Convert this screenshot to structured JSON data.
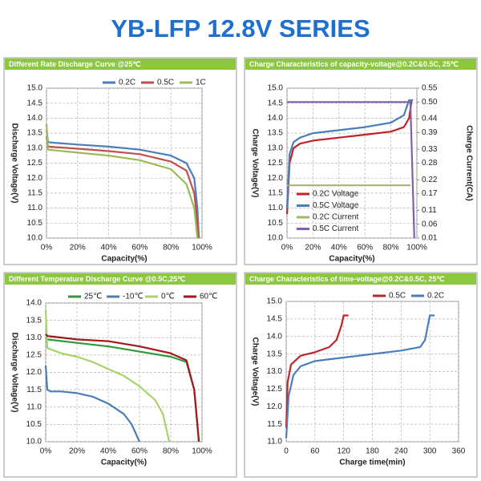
{
  "title": "YB-LFP 12.8V SERIES",
  "chart_data": [
    {
      "type": "line",
      "title": "Different Rate Discharge Curve @25℃",
      "x_label": "Capacity(%)",
      "y_label": "Discharge Voltage(V)",
      "xlim": [
        0,
        100
      ],
      "xticks": [
        {
          "value": 0,
          "label": "0%"
        },
        {
          "value": 20,
          "label": "20%"
        },
        {
          "value": 40,
          "label": "40%"
        },
        {
          "value": 60,
          "label": "60%"
        },
        {
          "value": 80,
          "label": "80%"
        },
        {
          "value": 100,
          "label": "100%"
        }
      ],
      "ylim": [
        10,
        15
      ],
      "yticks": [
        {
          "value": 10,
          "label": "10.0"
        },
        10.5,
        {
          "value": 11,
          "label": "11.0"
        },
        11.5,
        {
          "value": 12,
          "label": "12.0"
        },
        12.5,
        {
          "value": 13,
          "label": "13.0"
        },
        13.5,
        {
          "value": 14,
          "label": "14.0"
        },
        14.5,
        {
          "value": 15,
          "label": "15.0"
        }
      ],
      "grid": true,
      "legend": "top",
      "series": [
        {
          "name": "0.2C",
          "color": "#4a7ebb",
          "x": [
            0,
            1,
            5,
            20,
            40,
            60,
            80,
            90,
            95,
            97,
            98
          ],
          "values": [
            13.6,
            13.2,
            13.18,
            13.12,
            13.05,
            12.95,
            12.75,
            12.5,
            12.0,
            11.0,
            10.0
          ]
        },
        {
          "name": "0.5C",
          "color": "#c0504d",
          "x": [
            0,
            1,
            20,
            40,
            60,
            80,
            90,
            95,
            97,
            98
          ],
          "values": [
            13.4,
            13.05,
            12.98,
            12.9,
            12.8,
            12.55,
            12.25,
            11.5,
            10.5,
            10.0
          ]
        },
        {
          "name": "1C",
          "color": "#9bbb59",
          "x": [
            0,
            1,
            20,
            40,
            60,
            80,
            90,
            95,
            97
          ],
          "values": [
            13.8,
            12.95,
            12.85,
            12.75,
            12.6,
            12.3,
            11.8,
            11.0,
            10.0
          ]
        }
      ]
    },
    {
      "type": "line",
      "title": "Charge  Characteristics of capacity-voltage@0.2C&0.5C, 25℃",
      "x_label": "Capacity(%)",
      "y_label": "Charge Voltage(V)",
      "y2_label": "Charge Current(CA)",
      "xlim": [
        0,
        100
      ],
      "xticks": [
        {
          "value": 0,
          "label": "0%"
        },
        {
          "value": 20,
          "label": "20%"
        },
        {
          "value": 40,
          "label": "40%"
        },
        {
          "value": 60,
          "label": "60%"
        },
        {
          "value": 80,
          "label": "80%"
        },
        {
          "value": 100,
          "label": "100%"
        }
      ],
      "ylim": [
        10,
        15
      ],
      "yticks": [
        {
          "value": 10,
          "label": "10.0"
        },
        10.5,
        {
          "value": 11,
          "label": "11.0"
        },
        11.5,
        {
          "value": 12,
          "label": "12.0"
        },
        12.5,
        {
          "value": 13,
          "label": "13.0"
        },
        13.5,
        {
          "value": 14,
          "label": "14.0"
        },
        14.5,
        {
          "value": 15,
          "label": "15.0"
        }
      ],
      "y2lim": [
        0.01,
        0.55
      ],
      "y2ticks": [
        0.01,
        0.06,
        0.11,
        0.17,
        0.22,
        0.28,
        0.33,
        0.39,
        0.44,
        {
          "value": 0.5,
          "label": "0.50"
        },
        0.55
      ],
      "grid": true,
      "legend": "lower left",
      "series": [
        {
          "name": "0.2C Voltage",
          "color": "#c0232a",
          "x": [
            0,
            2,
            5,
            10,
            20,
            40,
            60,
            80,
            90,
            94,
            96,
            97
          ],
          "values": [
            10.8,
            12.5,
            13.0,
            13.15,
            13.25,
            13.35,
            13.45,
            13.55,
            13.7,
            14.0,
            14.6,
            14.6
          ]
        },
        {
          "name": "0.5C Voltage",
          "color": "#4a7ebb",
          "x": [
            0,
            2,
            5,
            10,
            20,
            40,
            60,
            80,
            90,
            94,
            97
          ],
          "values": [
            11.0,
            12.8,
            13.2,
            13.35,
            13.5,
            13.6,
            13.7,
            13.85,
            14.1,
            14.6,
            14.6
          ]
        },
        {
          "name": "0.2C Current",
          "color": "#9bbb59",
          "axis": "y2",
          "x": [
            0,
            95
          ],
          "values": [
            0.2,
            0.2
          ]
        },
        {
          "name": "0.5C Current",
          "color": "#7f5fa8",
          "axis": "y2",
          "x": [
            0,
            95,
            98
          ],
          "values": [
            0.5,
            0.5,
            0.01
          ]
        }
      ]
    },
    {
      "type": "line",
      "title": "Different Temperature Discharge Curve @0.5C,25℃",
      "x_label": "Capacity(%)",
      "y_label": "Discharge Voltage(V)",
      "xlim": [
        0,
        100
      ],
      "xticks": [
        {
          "value": 0,
          "label": "0%"
        },
        {
          "value": 20,
          "label": "20%"
        },
        {
          "value": 40,
          "label": "40%"
        },
        {
          "value": 60,
          "label": "60%"
        },
        {
          "value": 80,
          "label": "80%"
        },
        {
          "value": 100,
          "label": "100%"
        }
      ],
      "ylim": [
        10,
        14
      ],
      "yticks": [
        {
          "value": 10,
          "label": "10.0"
        },
        10.5,
        {
          "value": 11,
          "label": "11.0"
        },
        11.5,
        {
          "value": 12,
          "label": "12.0"
        },
        12.5,
        {
          "value": 13,
          "label": "13.0"
        },
        13.5,
        {
          "value": 14,
          "label": "14.0"
        }
      ],
      "grid": true,
      "legend": "top",
      "series": [
        {
          "name": "25℃",
          "color": "#2e9a3a",
          "x": [
            0,
            1,
            20,
            40,
            60,
            80,
            90,
            95,
            97,
            98
          ],
          "values": [
            13.0,
            12.95,
            12.85,
            12.75,
            12.6,
            12.45,
            12.3,
            11.5,
            10.5,
            10.0
          ]
        },
        {
          "name": "-10℃",
          "color": "#4a7ebb",
          "x": [
            0,
            1,
            3,
            10,
            20,
            30,
            40,
            50,
            55,
            60
          ],
          "values": [
            12.2,
            11.5,
            11.45,
            11.45,
            11.4,
            11.3,
            11.1,
            10.8,
            10.5,
            10.0
          ]
        },
        {
          "name": "0℃",
          "color": "#a6d36a",
          "x": [
            0,
            1,
            10,
            20,
            30,
            40,
            50,
            60,
            70,
            75,
            79
          ],
          "values": [
            13.8,
            12.7,
            12.55,
            12.45,
            12.3,
            12.1,
            11.9,
            11.6,
            11.2,
            10.8,
            10.0
          ]
        },
        {
          "name": "60℃",
          "color": "#a3161b",
          "x": [
            0,
            1,
            20,
            40,
            60,
            80,
            90,
            95,
            97,
            98
          ],
          "values": [
            13.1,
            13.05,
            12.95,
            12.9,
            12.75,
            12.55,
            12.35,
            11.5,
            10.5,
            10.0
          ]
        }
      ]
    },
    {
      "type": "line",
      "title": "Charge  Characteristics of time-voltage@0.2C&0.5C, 25℃",
      "x_label": "Charge time(min)",
      "y_label": "Charge Voltage(V)",
      "xlim": [
        0,
        360
      ],
      "xticks": [
        0,
        60,
        120,
        180,
        240,
        300,
        360
      ],
      "ylim": [
        11,
        15
      ],
      "yticks": [
        {
          "value": 11,
          "label": "11.0"
        },
        11.5,
        {
          "value": 12,
          "label": "12.0"
        },
        12.5,
        {
          "value": 13,
          "label": "13.0"
        },
        13.5,
        {
          "value": 14,
          "label": "14.0"
        },
        14.5,
        {
          "value": 15,
          "label": "15.0"
        }
      ],
      "grid": true,
      "legend": "top",
      "series": [
        {
          "name": "0.5C",
          "color": "#c0232a",
          "x": [
            0,
            3,
            10,
            30,
            60,
            90,
            105,
            115,
            120,
            130
          ],
          "values": [
            11.4,
            12.7,
            13.2,
            13.45,
            13.55,
            13.7,
            13.9,
            14.3,
            14.6,
            14.6
          ]
        },
        {
          "name": "0.2C",
          "color": "#4a7ebb",
          "x": [
            0,
            5,
            15,
            30,
            60,
            120,
            180,
            240,
            280,
            290,
            300,
            310
          ],
          "values": [
            11.1,
            12.3,
            12.9,
            13.15,
            13.3,
            13.4,
            13.5,
            13.6,
            13.7,
            13.9,
            14.6,
            14.6
          ]
        }
      ]
    }
  ]
}
